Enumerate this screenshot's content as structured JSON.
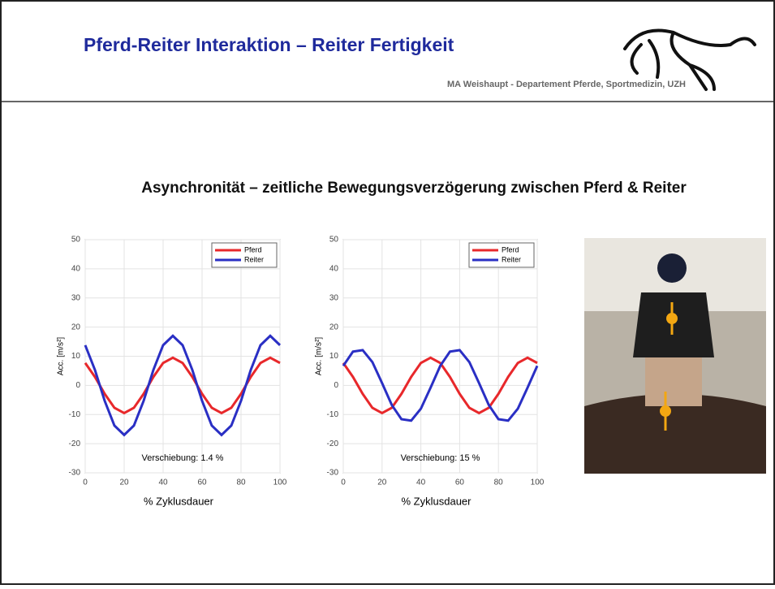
{
  "slide": {
    "title": "Pferd-Reiter Interaktion – Reiter Fertigkeit",
    "author": "MA Weishaupt - Departement Pferde, Sportmedizin, UZH",
    "heading": "Asynchronität – zeitliche Bewegungsverzögerung zwischen Pferd & Reiter"
  },
  "chart_data": [
    {
      "type": "line",
      "x_label": "% Zyklusdauer",
      "y_label": "Acc. [m/s²]",
      "annotation": "Verschiebung: 1.4 %",
      "x": [
        0,
        5,
        10,
        15,
        20,
        25,
        30,
        35,
        40,
        45,
        50,
        55,
        60,
        65,
        70,
        75,
        80,
        85,
        90,
        95,
        100
      ],
      "series": [
        {
          "name": "Pferd",
          "color": "#e8282b",
          "values": [
            7.7,
            2.9,
            -2.9,
            -7.7,
            -9.5,
            -7.7,
            -2.9,
            2.9,
            7.7,
            9.5,
            7.7,
            2.9,
            -2.9,
            -7.7,
            -9.5,
            -7.7,
            -2.9,
            2.9,
            7.7,
            9.5,
            7.7
          ]
        },
        {
          "name": "Reiter",
          "color": "#2a2fc4",
          "values": [
            13.8,
            5.3,
            -5.3,
            -13.8,
            -17,
            -13.8,
            -5.3,
            5.3,
            13.8,
            17,
            13.8,
            5.3,
            -5.3,
            -13.8,
            -17,
            -13.8,
            -5.3,
            5.3,
            13.8,
            17,
            13.8
          ]
        }
      ],
      "xlim": [
        0,
        100
      ],
      "xticks": [
        0,
        20,
        40,
        60,
        80,
        100
      ],
      "ylim": [
        -30,
        50
      ],
      "yticks": [
        -30,
        -20,
        -10,
        0,
        10,
        20,
        30,
        40,
        50
      ],
      "grid": true,
      "legend": "top-right"
    },
    {
      "type": "line",
      "x_label": "% Zyklusdauer",
      "y_label": "Acc. [m/s²]",
      "annotation": "Verschiebung: 15 %",
      "x": [
        0,
        5,
        10,
        15,
        20,
        25,
        30,
        35,
        40,
        45,
        50,
        55,
        60,
        65,
        70,
        75,
        80,
        85,
        90,
        95,
        100
      ],
      "series": [
        {
          "name": "Pferd",
          "color": "#e8282b",
          "values": [
            7.7,
            2.9,
            -2.9,
            -7.7,
            -9.5,
            -7.7,
            -2.9,
            2.9,
            7.7,
            9.5,
            7.7,
            2.9,
            -2.9,
            -7.7,
            -9.5,
            -7.7,
            -2.9,
            2.9,
            7.7,
            9.5,
            7.7
          ]
        },
        {
          "name": "Reiter",
          "color": "#2a2fc4",
          "values": [
            6.7,
            11.6,
            12.1,
            8.0,
            0.8,
            -6.7,
            -11.6,
            -12.1,
            -8.0,
            -0.8,
            6.7,
            11.6,
            12.1,
            8.0,
            0.8,
            -6.7,
            -11.6,
            -12.1,
            -8.0,
            -0.8,
            6.7
          ]
        }
      ],
      "xlim": [
        0,
        100
      ],
      "xticks": [
        0,
        20,
        40,
        60,
        80,
        100
      ],
      "ylim": [
        -30,
        50
      ],
      "yticks": [
        -30,
        -20,
        -10,
        0,
        10,
        20,
        30,
        40,
        50
      ],
      "grid": true,
      "legend": "top-right"
    }
  ]
}
